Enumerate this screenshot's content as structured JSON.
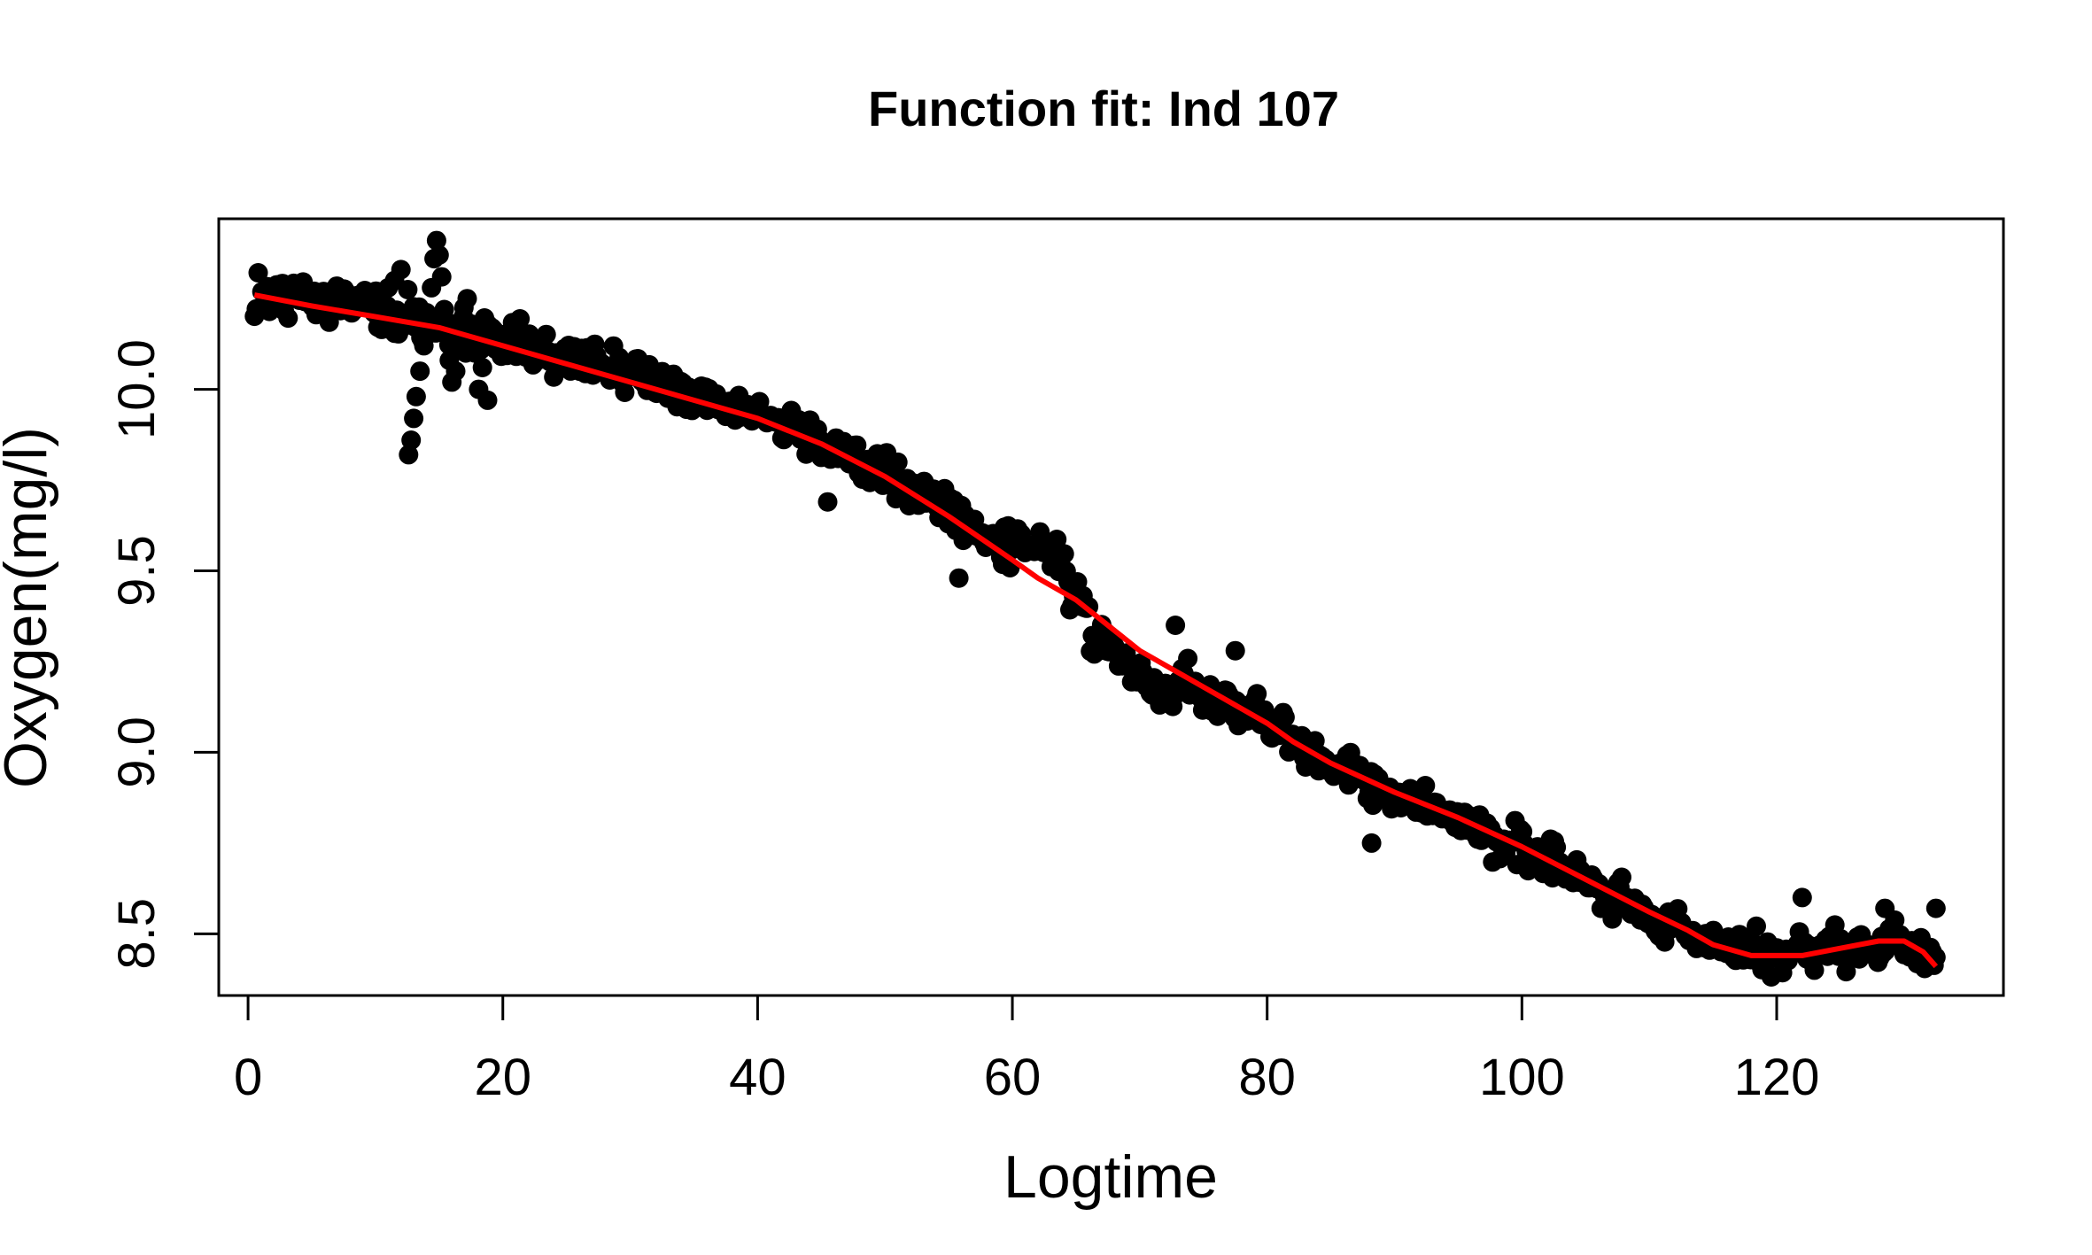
{
  "chart_data": {
    "type": "scatter",
    "title": "Function fit: Ind 107",
    "xlabel": "Logtime",
    "ylabel": "Oxygen(mg/l)",
    "xlim": [
      -2.3,
      137.8
    ],
    "ylim": [
      8.33,
      10.47
    ],
    "x_ticks": [
      0,
      20,
      40,
      60,
      80,
      100,
      120
    ],
    "y_ticks": [
      8.5,
      9.0,
      9.5,
      10.0
    ],
    "x_tick_labels": [
      "0",
      "20",
      "40",
      "60",
      "80",
      "100",
      "120"
    ],
    "y_tick_labels": [
      "8.5",
      "9.0",
      "9.5",
      "10.0"
    ],
    "grid": false,
    "legend": "none",
    "colors": {
      "points": "#000000",
      "fit_line": "#ff0000"
    },
    "series": [
      {
        "kind": "points",
        "points_are_dense_samples": true,
        "trend_knots": [
          [
            0.5,
            10.26
          ],
          [
            5,
            10.25
          ],
          [
            10,
            10.23
          ],
          [
            12,
            10.2
          ],
          [
            15,
            10.18
          ],
          [
            20,
            10.14
          ],
          [
            25,
            10.09
          ],
          [
            30,
            10.04
          ],
          [
            35,
            9.99
          ],
          [
            40,
            9.93
          ],
          [
            45,
            9.86
          ],
          [
            50,
            9.77
          ],
          [
            55,
            9.66
          ],
          [
            60,
            9.55
          ],
          [
            63,
            9.48
          ],
          [
            65,
            9.42
          ],
          [
            70,
            9.26
          ],
          [
            75,
            9.16
          ],
          [
            80,
            9.08
          ],
          [
            85,
            8.97
          ],
          [
            90,
            8.88
          ],
          [
            95,
            8.81
          ],
          [
            100,
            8.74
          ],
          [
            105,
            8.65
          ],
          [
            110,
            8.55
          ],
          [
            115,
            8.47
          ],
          [
            120,
            8.44
          ],
          [
            125,
            8.47
          ],
          [
            130,
            8.47
          ],
          [
            132.5,
            8.42
          ]
        ],
        "noise_sd": 0.045,
        "spike_points": [
          [
            12.6,
            9.82
          ],
          [
            12.8,
            9.86
          ],
          [
            13.0,
            9.92
          ],
          [
            13.2,
            9.98
          ],
          [
            13.5,
            10.05
          ],
          [
            13.8,
            10.12
          ],
          [
            14.1,
            10.2
          ],
          [
            14.4,
            10.28
          ],
          [
            14.6,
            10.36
          ],
          [
            14.8,
            10.41
          ],
          [
            15.0,
            10.37
          ],
          [
            15.2,
            10.31
          ],
          [
            15.4,
            10.22
          ],
          [
            15.6,
            10.15
          ],
          [
            15.8,
            10.08
          ],
          [
            16.0,
            10.02
          ],
          [
            16.3,
            10.05
          ],
          [
            16.6,
            10.12
          ],
          [
            16.9,
            10.2
          ],
          [
            17.2,
            10.25
          ],
          [
            17.5,
            10.18
          ],
          [
            17.8,
            10.1
          ],
          [
            18.1,
            10.0
          ],
          [
            18.4,
            10.06
          ],
          [
            18.8,
            9.97
          ],
          [
            19.5,
            10.12
          ],
          [
            11.5,
            10.3
          ],
          [
            12.0,
            10.33
          ],
          [
            11.0,
            10.28
          ]
        ],
        "outlier_points": [
          [
            88.2,
            8.75
          ],
          [
            72.8,
            9.35
          ],
          [
            77.5,
            9.28
          ],
          [
            122,
            8.6
          ],
          [
            128.5,
            8.57
          ],
          [
            132.5,
            8.57
          ],
          [
            45.5,
            9.69
          ],
          [
            55.8,
            9.48
          ]
        ]
      },
      {
        "kind": "fit_line",
        "x": [
          0.5,
          5,
          10,
          15,
          20,
          25,
          30,
          35,
          40,
          45,
          50,
          55,
          60,
          62,
          65,
          70,
          75,
          80,
          82,
          85,
          90,
          95,
          100,
          105,
          110,
          113,
          115,
          118,
          120,
          122,
          125,
          128,
          130,
          131.5,
          132.5
        ],
        "y": [
          10.26,
          10.23,
          10.2,
          10.17,
          10.12,
          10.07,
          10.02,
          9.97,
          9.92,
          9.85,
          9.76,
          9.65,
          9.53,
          9.48,
          9.42,
          9.28,
          9.18,
          9.08,
          9.03,
          8.97,
          8.89,
          8.82,
          8.74,
          8.65,
          8.56,
          8.51,
          8.47,
          8.44,
          8.44,
          8.44,
          8.46,
          8.48,
          8.48,
          8.45,
          8.41
        ]
      }
    ]
  }
}
